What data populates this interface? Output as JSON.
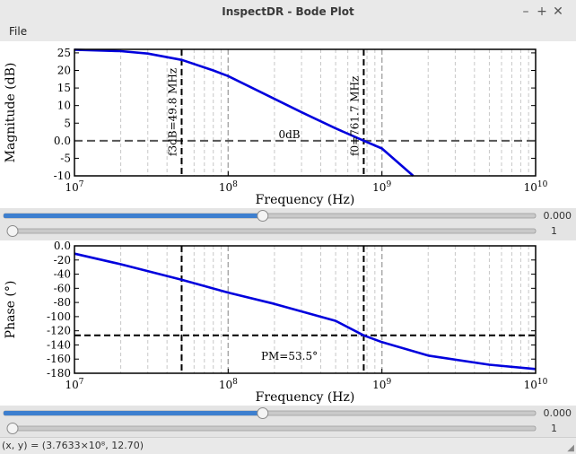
{
  "window": {
    "title": "InspectDR - Bode Plot",
    "minimize_glyph": "–",
    "maximize_glyph": "+",
    "close_glyph": "✕"
  },
  "menu": {
    "items": [
      {
        "label": "File"
      }
    ]
  },
  "magnitude_plot": {
    "xlabel": "Frequency (Hz)",
    "ylabel": "Magnitude (dB)",
    "y_ticks": [
      "25",
      "20",
      "15",
      "10",
      "5",
      "0.0",
      "-5",
      "-10"
    ],
    "x_ticks": [
      {
        "base": "10",
        "exp": "7"
      },
      {
        "base": "10",
        "exp": "8"
      },
      {
        "base": "10",
        "exp": "9"
      },
      {
        "base": "10",
        "exp": "10"
      }
    ],
    "annotations": {
      "f3db": "f3dB=49.8 MHz",
      "f0": "f0=761.7 MHz",
      "zero_db": "0dB"
    }
  },
  "phase_plot": {
    "xlabel": "Frequency (Hz)",
    "ylabel": "Phase (°)",
    "y_ticks": [
      "0.0",
      "-20",
      "-40",
      "-60",
      "-80",
      "-100",
      "-120",
      "-140",
      "-160",
      "-180"
    ],
    "x_ticks": [
      {
        "base": "10",
        "exp": "7"
      },
      {
        "base": "10",
        "exp": "8"
      },
      {
        "base": "10",
        "exp": "9"
      },
      {
        "base": "10",
        "exp": "10"
      }
    ],
    "annotations": {
      "pm": "PM=53.5°"
    }
  },
  "sliders": {
    "top_a": {
      "value_label": "0.000",
      "fraction": 0.487
    },
    "top_b": {
      "value_label": "1",
      "fraction": 0.0
    },
    "bottom_a": {
      "value_label": "0.000",
      "fraction": 0.487
    },
    "bottom_b": {
      "value_label": "1",
      "fraction": 0.0
    }
  },
  "status": {
    "text": "(x, y) = (3.7633×10⁸, 12.70)"
  },
  "chart_data": [
    {
      "type": "line",
      "xlabel": "Frequency (Hz)",
      "ylabel": "Magnitude (dB)",
      "x_scale": "log",
      "xlim": [
        10000000,
        10000000000
      ],
      "ylim": [
        -10,
        26
      ],
      "grid": "vertical minor log",
      "x": [
        10000000,
        20000000,
        30000000,
        50000000,
        80000000,
        100000000,
        200000000,
        300000000,
        500000000,
        761700000,
        1000000000,
        1600000000
      ],
      "series": [
        {
          "values": [
            25.9,
            25.5,
            24.8,
            23.0,
            20.0,
            18.4,
            11.9,
            8.1,
            3.5,
            0.0,
            -2.2,
            -10.0
          ],
          "color": "#0000dd"
        }
      ],
      "markers": {
        "f3db_hz": 49800000,
        "f0_hz": 761700000,
        "zero_db": 0
      }
    },
    {
      "type": "line",
      "xlabel": "Frequency (Hz)",
      "ylabel": "Phase (°)",
      "x_scale": "log",
      "xlim": [
        10000000,
        10000000000
      ],
      "ylim": [
        -180,
        0
      ],
      "grid": "vertical minor log",
      "x": [
        10000000,
        20000000,
        50000000,
        100000000,
        200000000,
        500000000,
        761700000,
        1000000000,
        2000000000,
        5000000000,
        10000000000
      ],
      "series": [
        {
          "values": [
            -11,
            -26,
            -48,
            -66,
            -82,
            -106,
            -126.5,
            -136,
            -155,
            -168,
            -174
          ],
          "color": "#0000dd"
        }
      ],
      "markers": {
        "f3db_hz": 49800000,
        "f0_hz": 761700000,
        "pm_level_deg": -126.5,
        "phase_margin_deg": 53.5
      }
    }
  ]
}
